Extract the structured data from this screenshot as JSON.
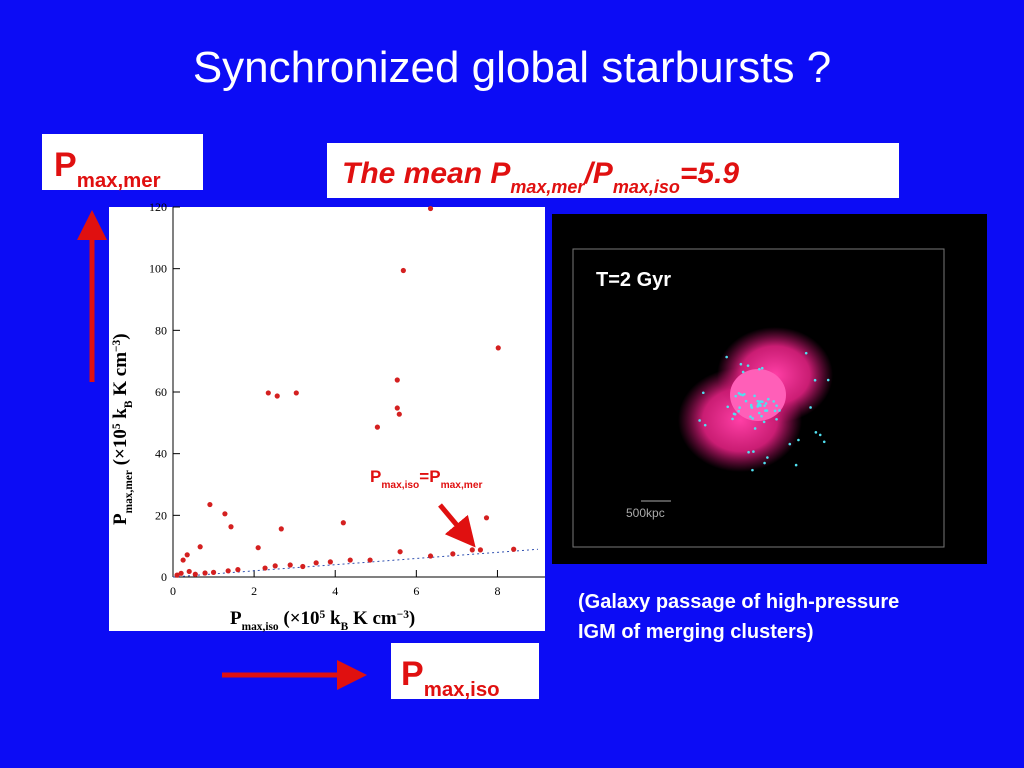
{
  "title": "Synchronized global starbursts ?",
  "mer_label": [
    {
      "text": "P"
    },
    {
      "sub": "max,mer"
    }
  ],
  "mean_label": [
    {
      "text": "The mean P"
    },
    {
      "sub": "max,mer"
    },
    {
      "text": "/P"
    },
    {
      "sub": "max,iso"
    },
    {
      "text": "=5.9"
    }
  ],
  "iso_label": [
    {
      "text": "P"
    },
    {
      "sub": "max,iso"
    }
  ],
  "simulation": {
    "time_label": "T=2 Gyr",
    "scale_label": "500kpc"
  },
  "caption": [
    "(Galaxy passage of high-pressure",
    "IGM of merging clusters)"
  ],
  "chart_data": {
    "type": "scatter",
    "color": "#d42020",
    "x_label": [
      {
        "text": "P"
      },
      {
        "sub": "max,iso"
      },
      {
        "text": "  (×10"
      },
      {
        "sup": "5"
      },
      {
        "text": " k"
      },
      {
        "sub": "B"
      },
      {
        "text": " K cm"
      },
      {
        "sup": "−3"
      },
      {
        "text": ")"
      }
    ],
    "y_label": [
      {
        "text": "P"
      },
      {
        "sub": "max,mer"
      },
      {
        "text": "  (×10"
      },
      {
        "sup": "5"
      },
      {
        "text": " k"
      },
      {
        "sub": "B"
      },
      {
        "text": " K cm"
      },
      {
        "sup": "−3"
      },
      {
        "text": ")"
      }
    ],
    "annotation": [
      {
        "text": "P"
      },
      {
        "sub": "max,iso"
      },
      {
        "text": "=P"
      },
      {
        "sub": "max,mer"
      }
    ],
    "xlim": [
      0,
      9
    ],
    "ylim": [
      0,
      120
    ],
    "xticks": [
      0,
      2,
      4,
      6,
      8
    ],
    "yticks": [
      0,
      20,
      40,
      60,
      80,
      100,
      120
    ],
    "x": [
      6.35,
      5.68,
      8.02,
      5.53,
      5.53,
      5.58,
      2.35,
      2.57,
      3.04,
      5.04,
      0.91,
      1.28,
      1.43,
      2.67,
      4.2,
      7.73,
      0.67,
      2.1,
      0.35,
      0.25,
      5.6,
      6.35,
      7.38,
      7.58,
      3.53,
      3.88,
      4.37,
      4.86,
      2.27,
      2.52,
      2.89,
      1.36,
      0.79,
      0.1,
      0.2,
      0.4,
      0.55,
      1.0,
      1.6,
      3.2,
      6.9,
      8.4
    ],
    "values": [
      119.5,
      99.4,
      74.3,
      63.9,
      54.8,
      52.8,
      59.7,
      58.7,
      59.7,
      48.6,
      23.5,
      20.5,
      16.3,
      15.6,
      17.6,
      19.2,
      9.8,
      9.5,
      7.2,
      5.5,
      8.2,
      6.8,
      8.8,
      8.8,
      4.6,
      4.9,
      5.5,
      5.5,
      2.9,
      3.6,
      3.9,
      2.0,
      1.3,
      0.6,
      1.2,
      1.8,
      0.9,
      1.5,
      2.4,
      3.4,
      7.5,
      9.0
    ]
  }
}
